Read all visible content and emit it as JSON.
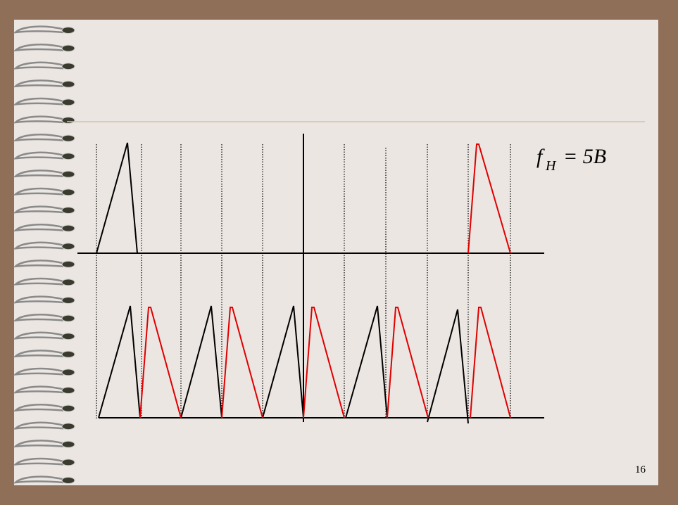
{
  "slide": {
    "formula": {
      "symbol": "f",
      "subscript": "H",
      "rhs": "= 5B"
    },
    "page_number": "16"
  }
}
